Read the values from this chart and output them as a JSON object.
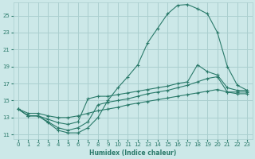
{
  "xlabel": "Humidex (Indice chaleur)",
  "background_color": "#cce8e8",
  "grid_color": "#aacfcf",
  "line_color": "#2a7a6a",
  "xlim": [
    -0.5,
    23.5
  ],
  "ylim": [
    10.5,
    26.5
  ],
  "xticks": [
    0,
    1,
    2,
    3,
    4,
    5,
    6,
    7,
    8,
    9,
    10,
    11,
    12,
    13,
    14,
    15,
    16,
    17,
    18,
    19,
    20,
    21,
    22,
    23
  ],
  "yticks": [
    11,
    13,
    15,
    17,
    19,
    21,
    23,
    25
  ],
  "line1_y": [
    14.0,
    13.2,
    13.2,
    12.4,
    11.5,
    11.2,
    11.2,
    11.8,
    13.0,
    15.0,
    16.5,
    17.8,
    19.2,
    21.8,
    23.5,
    25.2,
    26.2,
    26.3,
    25.8,
    25.2,
    23.0,
    19.0,
    16.8,
    16.2
  ],
  "line2_y": [
    14.0,
    13.2,
    13.2,
    12.8,
    12.4,
    12.2,
    12.5,
    15.2,
    15.5,
    15.5,
    15.7,
    15.9,
    16.1,
    16.3,
    16.5,
    16.7,
    17.0,
    17.2,
    19.2,
    18.4,
    18.0,
    16.5,
    16.2,
    16.2
  ],
  "line3_y": [
    14.0,
    13.2,
    13.2,
    12.5,
    11.8,
    11.5,
    11.8,
    12.5,
    14.5,
    14.8,
    15.0,
    15.2,
    15.5,
    15.8,
    16.0,
    16.2,
    16.5,
    16.8,
    17.2,
    17.6,
    17.8,
    16.0,
    15.8,
    15.8
  ],
  "line4_y": [
    14.0,
    13.5,
    13.5,
    13.2,
    13.0,
    13.0,
    13.2,
    13.5,
    13.8,
    14.0,
    14.2,
    14.5,
    14.7,
    14.9,
    15.1,
    15.3,
    15.5,
    15.7,
    15.9,
    16.1,
    16.3,
    16.0,
    16.0,
    16.0
  ]
}
